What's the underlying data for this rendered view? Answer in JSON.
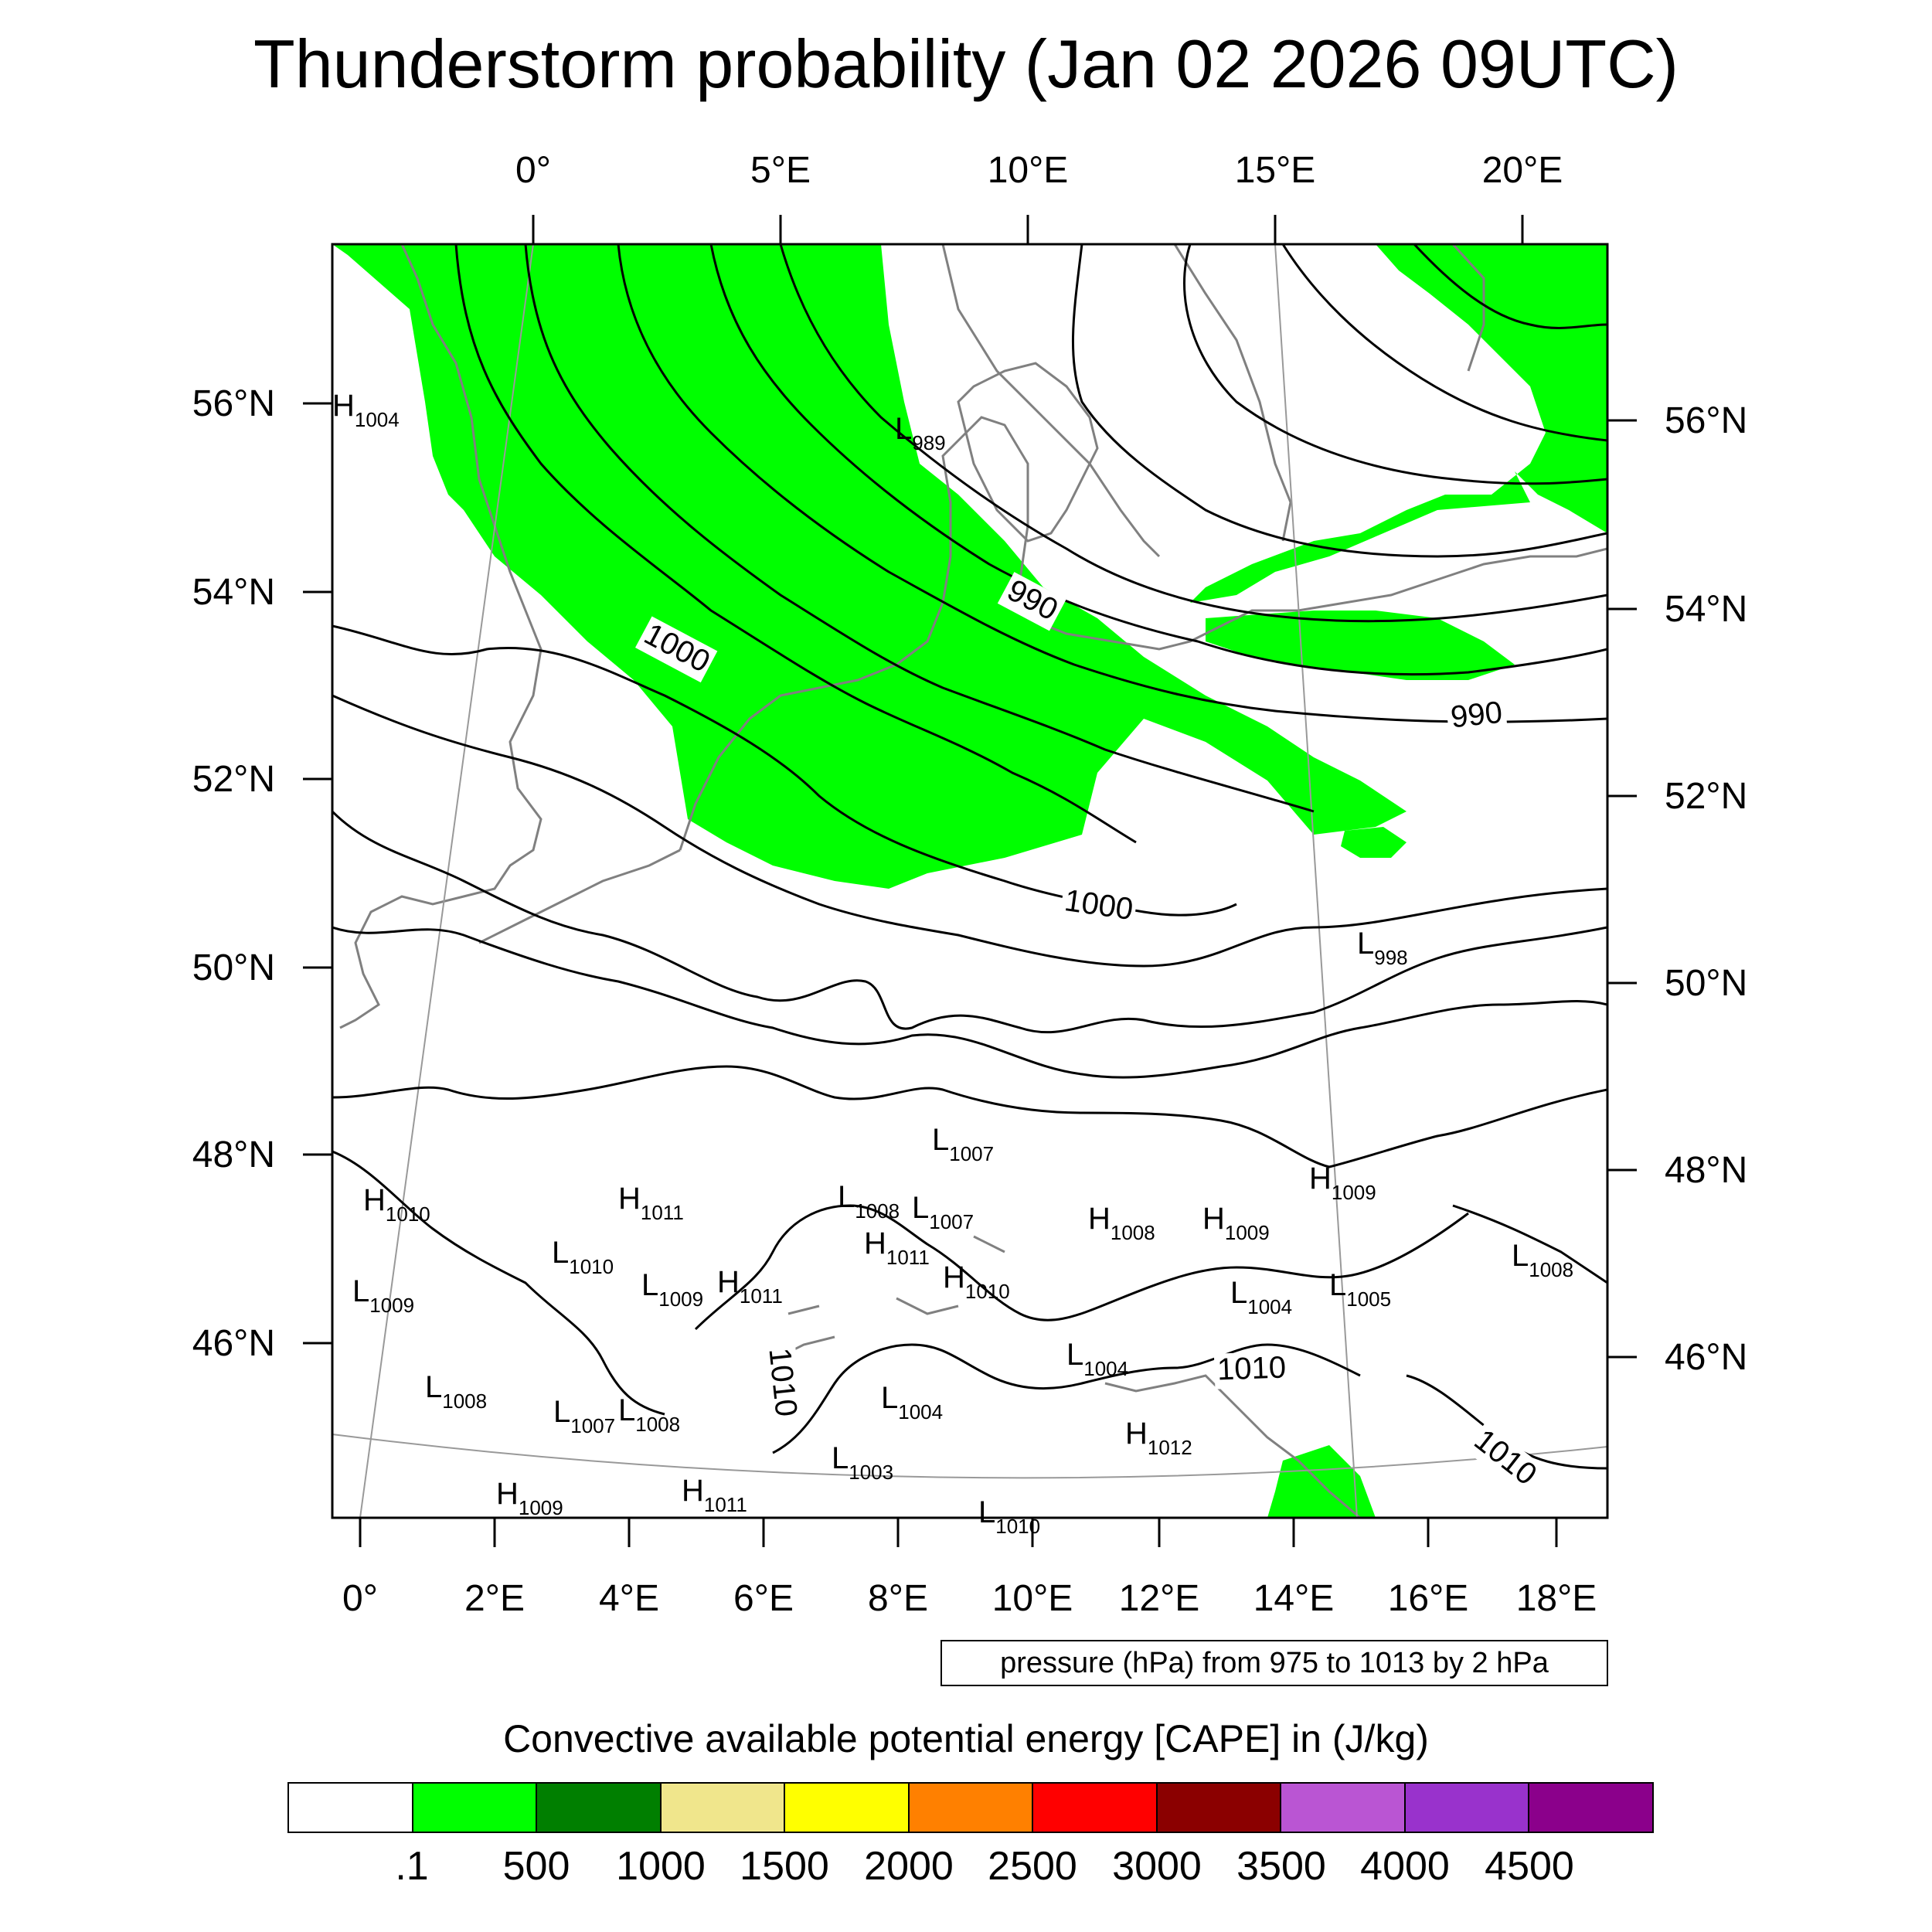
{
  "title": "Thunderstorm probability (Jan 02 2026 09UTC)",
  "map": {
    "top_lon_labels": [
      "0°",
      "5°E",
      "10°E",
      "15°E",
      "20°E"
    ],
    "bottom_lon_labels": [
      "0°",
      "2°E",
      "4°E",
      "6°E",
      "8°E",
      "10°E",
      "12°E",
      "14°E",
      "16°E",
      "18°E"
    ],
    "left_lat_labels": [
      "56°N",
      "54°N",
      "52°N",
      "50°N",
      "48°N",
      "46°N"
    ],
    "right_lat_labels": [
      "56°N",
      "54°N",
      "52°N",
      "50°N",
      "48°N",
      "46°N"
    ],
    "isobar_labels": [
      "1000",
      "990",
      "990",
      "1000",
      "1010",
      "1010",
      "1010"
    ],
    "pressure_centers": [
      {
        "letter": "H",
        "value": "1004"
      },
      {
        "letter": "L",
        "value": "989"
      },
      {
        "letter": "L",
        "value": "998"
      },
      {
        "letter": "L",
        "value": "1007"
      },
      {
        "letter": "H",
        "value": "1009"
      },
      {
        "letter": "H",
        "value": "1010"
      },
      {
        "letter": "H",
        "value": "1011"
      },
      {
        "letter": "L",
        "value": "1008"
      },
      {
        "letter": "L",
        "value": "1007"
      },
      {
        "letter": "H",
        "value": "1008"
      },
      {
        "letter": "H",
        "value": "1009"
      },
      {
        "letter": "L",
        "value": "1010"
      },
      {
        "letter": "H",
        "value": "1011"
      },
      {
        "letter": "L",
        "value": "1008"
      },
      {
        "letter": "L",
        "value": "1009"
      },
      {
        "letter": "L",
        "value": "1009"
      },
      {
        "letter": "H",
        "value": "1011"
      },
      {
        "letter": "H",
        "value": "1010"
      },
      {
        "letter": "L",
        "value": "1004"
      },
      {
        "letter": "L",
        "value": "1005"
      },
      {
        "letter": "L",
        "value": "1008"
      },
      {
        "letter": "L",
        "value": "1004"
      },
      {
        "letter": "L",
        "value": "1007"
      },
      {
        "letter": "L",
        "value": "1008"
      },
      {
        "letter": "L",
        "value": "1004"
      },
      {
        "letter": "H",
        "value": "1012"
      },
      {
        "letter": "L",
        "value": "1003"
      },
      {
        "letter": "H",
        "value": "1009"
      },
      {
        "letter": "H",
        "value": "1011"
      },
      {
        "letter": "L",
        "value": "1010"
      }
    ]
  },
  "pressure_info": "pressure (hPa) from 975 to 1013 by 2 hPa",
  "legend": {
    "title": "Convective available potential energy [CAPE] in (J/kg)",
    "colors": [
      "#ffffff",
      "#00ff00",
      "#007f00",
      "#f0e68c",
      "#ffff00",
      "#ff8000",
      "#ff0000",
      "#8b0000",
      "#ba55d3",
      "#9932cc",
      "#8b008b"
    ],
    "labels": [
      ".1",
      "500",
      "1000",
      "1500",
      "2000",
      "2500",
      "3000",
      "3500",
      "4000",
      "4500"
    ]
  },
  "colors": {
    "cape_green": "#00ff00",
    "isobar": "#000000",
    "coastline": "#808080"
  }
}
